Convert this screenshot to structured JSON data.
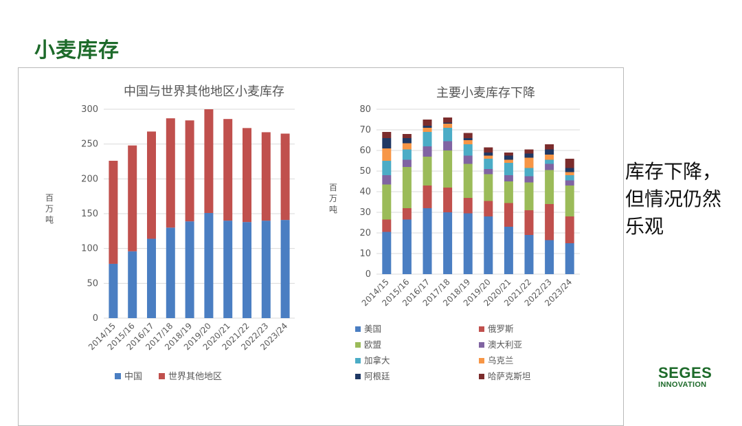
{
  "slide": {
    "title": "小麦库存",
    "side_note": [
      "库存下降，",
      "但情况仍然",
      "乐观"
    ],
    "logo": {
      "main": "SEGES",
      "sub": "INNOVATION"
    }
  },
  "chart_data": [
    {
      "type": "bar",
      "stacked": true,
      "title": "中国与世界其他地区小麦库存",
      "ylabel": "百万吨",
      "xlabel": "",
      "ylim": [
        0,
        300
      ],
      "yticks": [
        0,
        50,
        100,
        150,
        200,
        250,
        300
      ],
      "grid": true,
      "legend_position": "bottom",
      "categories": [
        "2014/15",
        "2015/16",
        "2016/17",
        "2017/18",
        "2018/19",
        "2019/20",
        "2020/21",
        "2021/22",
        "2022/23",
        "2023/24"
      ],
      "series": [
        {
          "name": "中国",
          "color": "#4a7ec2",
          "values": [
            78,
            96,
            114,
            130,
            139,
            151,
            140,
            138,
            140,
            141
          ]
        },
        {
          "name": "世界其他地区",
          "color": "#c0504d",
          "values": [
            148,
            152,
            154,
            157,
            145,
            149,
            146,
            135,
            127,
            124
          ]
        }
      ]
    },
    {
      "type": "bar",
      "stacked": true,
      "title": "主要小麦库存下降",
      "ylabel": "百万吨",
      "xlabel": "",
      "ylim": [
        0,
        80
      ],
      "yticks": [
        0,
        10,
        20,
        30,
        40,
        50,
        60,
        70,
        80
      ],
      "grid": true,
      "legend_position": "bottom",
      "categories": [
        "2014/15",
        "2015/16",
        "2016/17",
        "2017/18",
        "2018/19",
        "2019/20",
        "2020/21",
        "2021/22",
        "2022/23",
        "2023/24"
      ],
      "series": [
        {
          "name": "美国",
          "color": "#4a7ec2",
          "values": [
            20.5,
            26.5,
            32,
            30,
            29.5,
            28,
            23,
            19,
            16.5,
            15
          ]
        },
        {
          "name": "俄罗斯",
          "color": "#c0504d",
          "values": [
            6,
            5.5,
            11,
            12,
            7.5,
            7.5,
            11.5,
            12,
            17.5,
            13
          ]
        },
        {
          "name": "欧盟",
          "color": "#9bbb59",
          "values": [
            17,
            20,
            14,
            18,
            16.5,
            13,
            10.5,
            13.5,
            16.5,
            15
          ]
        },
        {
          "name": "澳大利亚",
          "color": "#8064a2",
          "values": [
            4.5,
            3.5,
            5,
            4.5,
            4,
            2.5,
            3,
            3,
            3,
            2.5
          ]
        },
        {
          "name": "加拿大",
          "color": "#4bacc6",
          "values": [
            7,
            5,
            7,
            6.5,
            5.5,
            5,
            6,
            4,
            2,
            2.5
          ]
        },
        {
          "name": "乌克兰",
          "color": "#f79646",
          "values": [
            6,
            3,
            2,
            2,
            2,
            1.5,
            1.5,
            5,
            2.5,
            1.5
          ]
        },
        {
          "name": "阿根廷",
          "color": "#1f3864",
          "values": [
            5,
            2.5,
            1,
            0.5,
            1,
            1.5,
            2,
            2,
            2.5,
            2
          ]
        },
        {
          "name": "哈萨克斯坦",
          "color": "#7b2c2c",
          "values": [
            3,
            2,
            3,
            2.5,
            2.5,
            2.5,
            1.5,
            2,
            2.5,
            4.5
          ]
        }
      ]
    }
  ]
}
